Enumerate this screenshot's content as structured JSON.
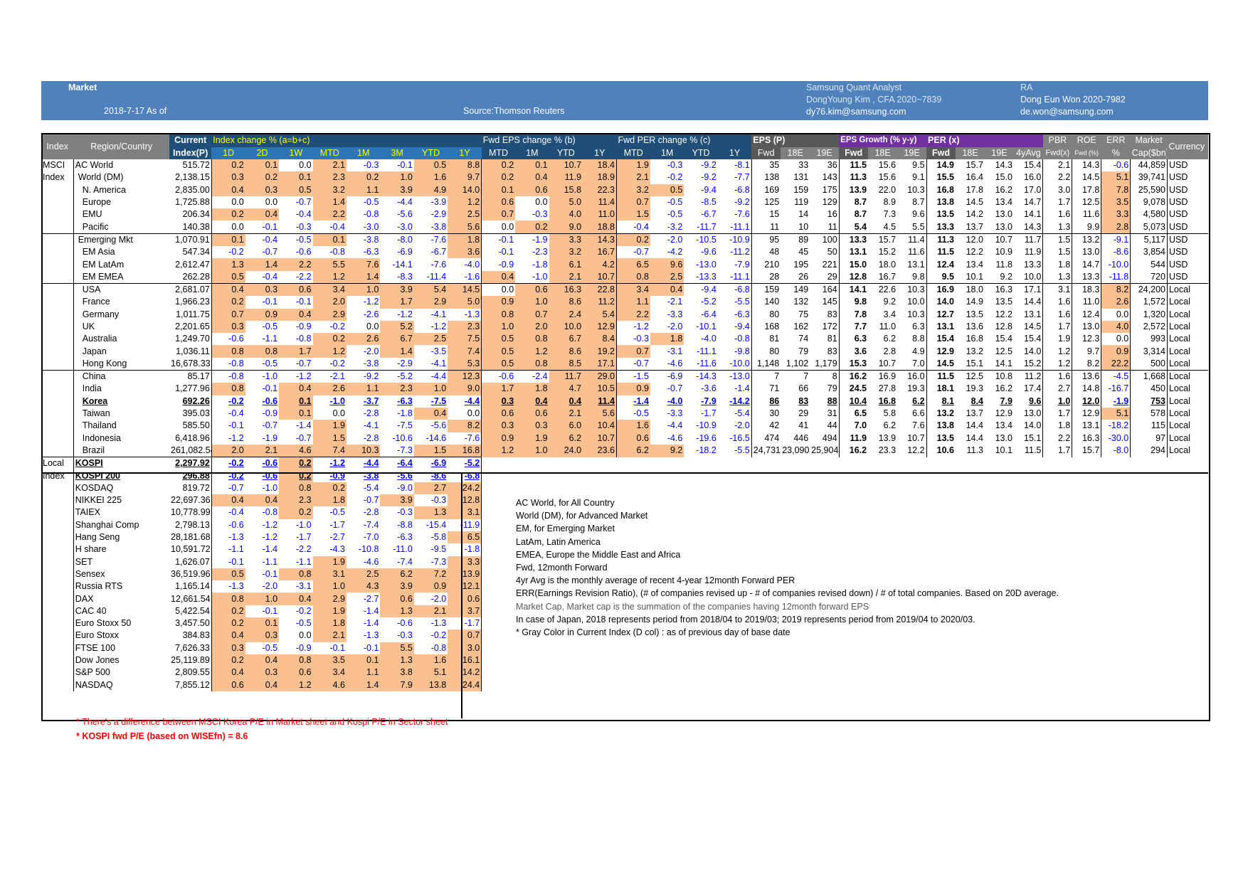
{
  "banner": {
    "title": "Market",
    "date": "2018-7-17 As of",
    "source": "Source:Thomson Reuters",
    "analyst_label": "Samsung Quant Analyst",
    "analyst_name": "DongYoung Kim , CFA 2020~7839",
    "analyst_email": "dy76.kim@samsung.com",
    "ra_label": "RA",
    "ra_name": "Dong Eun Won 2020-7982",
    "ra_email": "de.won@samsung.com"
  },
  "header": {
    "index": "Index",
    "region": "Region/Country",
    "current1": "Current",
    "current2": "Index(P)",
    "idx_change": "Index change % (a=b+c)",
    "eps_change": "Fwd EPS change % (b)",
    "per_change": "Fwd PER change % (c)",
    "eps": "EPS (P)",
    "eps_growth": "EPS Growth (% y-y)",
    "per": "PER (x)",
    "pbr1": "PBR",
    "pbr2": "Fwd(x)",
    "roe1": "ROE",
    "roe2": "Fwd (%)",
    "err1": "ERR",
    "err2": "%",
    "mcap1": "Market",
    "mcap2": "Cap($bn)",
    "currency": "Currency",
    "idx_cols": [
      "1D",
      "2D",
      "1W",
      "MTD",
      "1M",
      "3M",
      "YTD",
      "1Y"
    ],
    "eps_cols": [
      "MTD",
      "1M",
      "YTD",
      "1Y"
    ],
    "per_cols": [
      "MTD",
      "1M",
      "YTD",
      "1Y"
    ],
    "epsp_cols": [
      "Fwd",
      "18E",
      "19E"
    ],
    "epsg_cols": [
      "Fwd",
      "18E",
      "19E"
    ],
    "perx_cols": [
      "Fwd",
      "18E",
      "19E",
      "4yAvg"
    ]
  },
  "groups": {
    "msci1": "MSCI",
    "msci2": "Index",
    "local1": "Local",
    "local2": "Index"
  },
  "msci_rows": [
    [
      "AC World",
      "515.72",
      "0.2",
      "0.1",
      "0.0",
      "2.1",
      "-0.3",
      "-0.1",
      "0.5",
      "8.8",
      "0.2",
      "0.1",
      "10.7",
      "18.4",
      "1.9",
      "-0.3",
      "-9.2",
      "-8.1",
      "35",
      "33",
      "36",
      "11.5",
      "15.6",
      "9.5",
      "14.9",
      "15.7",
      "14.3",
      "15.4",
      "2.1",
      "14.3",
      "-0.6",
      "44,859",
      "USD"
    ],
    [
      "World (DM)",
      "2,138.15",
      "0.3",
      "0.2",
      "0.1",
      "2.3",
      "0.2",
      "1.0",
      "1.6",
      "9.7",
      "0.2",
      "0.4",
      "11.9",
      "18.9",
      "2.1",
      "-0.2",
      "-9.2",
      "-7.7",
      "138",
      "131",
      "143",
      "11.3",
      "15.6",
      "9.1",
      "15.5",
      "16.4",
      "15.0",
      "16.0",
      "2.2",
      "14.5",
      "5.1",
      "39,741",
      "USD"
    ],
    [
      "N. America",
      "2,835.00",
      "0.4",
      "0.3",
      "0.5",
      "3.2",
      "1.1",
      "3.9",
      "4.9",
      "14.0",
      "0.1",
      "0.6",
      "15.8",
      "22.3",
      "3.2",
      "0.5",
      "-9.4",
      "-6.8",
      "169",
      "159",
      "175",
      "13.9",
      "22.0",
      "10.3",
      "16.8",
      "17.8",
      "16.2",
      "17.0",
      "3.0",
      "17.8",
      "7.8",
      "25,590",
      "USD"
    ],
    [
      "Europe",
      "1,725.88",
      "0.0",
      "0.0",
      "-0.7",
      "1.4",
      "-0.5",
      "-4.4",
      "-3.9",
      "1.2",
      "0.6",
      "0.0",
      "5.0",
      "11.4",
      "0.7",
      "-0.5",
      "-8.5",
      "-9.2",
      "125",
      "119",
      "129",
      "8.7",
      "8.9",
      "8.7",
      "13.8",
      "14.5",
      "13.4",
      "14.7",
      "1.7",
      "12.5",
      "3.5",
      "9,078",
      "USD"
    ],
    [
      "EMU",
      "206.34",
      "0.2",
      "0.4",
      "-0.4",
      "2.2",
      "-0.8",
      "-5.6",
      "-2.9",
      "2.5",
      "0.7",
      "-0.3",
      "4.0",
      "11.0",
      "1.5",
      "-0.5",
      "-6.7",
      "-7.6",
      "15",
      "14",
      "16",
      "8.7",
      "7.3",
      "9.6",
      "13.5",
      "14.2",
      "13.0",
      "14.1",
      "1.6",
      "11.6",
      "3.3",
      "4,580",
      "USD"
    ],
    [
      "Pacific",
      "140.38",
      "0.0",
      "-0.1",
      "-0.3",
      "-0.4",
      "-3.0",
      "-3.0",
      "-3.8",
      "5.6",
      "0.0",
      "0.2",
      "9.0",
      "18.8",
      "-0.4",
      "-3.2",
      "-11.7",
      "-11.1",
      "11",
      "10",
      "11",
      "5.4",
      "4.5",
      "5.5",
      "13.3",
      "13.7",
      "13.0",
      "14.3",
      "1.3",
      "9.9",
      "2.8",
      "5,073",
      "USD"
    ],
    [
      "Emerging Mkt",
      "1,070.91",
      "0.1",
      "-0.4",
      "-0.5",
      "0.1",
      "-3.8",
      "-8.0",
      "-7.6",
      "1.8",
      "-0.1",
      "-1.9",
      "3.3",
      "14.3",
      "0.2",
      "-2.0",
      "-10.5",
      "-10.9",
      "95",
      "89",
      "100",
      "13.3",
      "15.7",
      "11.4",
      "11.3",
      "12.0",
      "10.7",
      "11.7",
      "1.5",
      "13.2",
      "-9.1",
      "5,117",
      "USD"
    ],
    [
      "EM Asia",
      "547.34",
      "-0.2",
      "-0.7",
      "-0.6",
      "-0.8",
      "-6.3",
      "-6.9",
      "-6.7",
      "3.6",
      "-0.1",
      "-2.3",
      "3.2",
      "16.7",
      "-0.7",
      "-4.2",
      "-9.6",
      "-11.2",
      "48",
      "45",
      "50",
      "13.1",
      "15.2",
      "11.6",
      "11.5",
      "12.2",
      "10.9",
      "11.9",
      "1.5",
      "13.0",
      "-8.6",
      "3,854",
      "USD"
    ],
    [
      "EM LatAm",
      "2,612.47",
      "1.3",
      "1.4",
      "2.2",
      "5.5",
      "7.6",
      "-14.1",
      "-7.6",
      "-4.0",
      "-0.9",
      "-1.8",
      "6.1",
      "4.2",
      "6.5",
      "9.6",
      "-13.0",
      "-7.9",
      "210",
      "195",
      "221",
      "15.0",
      "18.0",
      "13.1",
      "12.4",
      "13.4",
      "11.8",
      "13.3",
      "1.8",
      "14.7",
      "-10.0",
      "544",
      "USD"
    ],
    [
      "EM EMEA",
      "262.28",
      "0.5",
      "-0.4",
      "-2.2",
      "1.2",
      "1.4",
      "-8.3",
      "-11.4",
      "-1.6",
      "0.4",
      "-1.0",
      "2.1",
      "10.7",
      "0.8",
      "2.5",
      "-13.3",
      "-11.1",
      "28",
      "26",
      "29",
      "12.8",
      "16.7",
      "9.8",
      "9.5",
      "10.1",
      "9.2",
      "10.0",
      "1.3",
      "13.3",
      "-11.8",
      "720",
      "USD"
    ],
    [
      "USA",
      "2,681.07",
      "0.4",
      "0.3",
      "0.6",
      "3.4",
      "1.0",
      "3.9",
      "5.4",
      "14.5",
      "0.0",
      "0.6",
      "16.3",
      "22.8",
      "3.4",
      "0.4",
      "-9.4",
      "-6.8",
      "159",
      "149",
      "164",
      "14.1",
      "22.6",
      "10.3",
      "16.9",
      "18.0",
      "16.3",
      "17.1",
      "3.1",
      "18.3",
      "8.2",
      "24,200",
      "Local"
    ],
    [
      "France",
      "1,966.23",
      "0.2",
      "-0.1",
      "-0.1",
      "2.0",
      "-1.2",
      "1.7",
      "2.9",
      "5.0",
      "0.9",
      "1.0",
      "8.6",
      "11.2",
      "1.1",
      "-2.1",
      "-5.2",
      "-5.5",
      "140",
      "132",
      "145",
      "9.8",
      "9.2",
      "10.0",
      "14.0",
      "14.9",
      "13.5",
      "14.4",
      "1.6",
      "11.0",
      "2.6",
      "1,572",
      "Local"
    ],
    [
      "Germany",
      "1,011.75",
      "0.7",
      "0.9",
      "0.4",
      "2.9",
      "-2.6",
      "-1.2",
      "-4.1",
      "-1.3",
      "0.8",
      "0.7",
      "2.4",
      "5.4",
      "2.2",
      "-3.3",
      "-6.4",
      "-6.3",
      "80",
      "75",
      "83",
      "7.8",
      "3.4",
      "10.3",
      "12.7",
      "13.5",
      "12.2",
      "13.1",
      "1.6",
      "12.4",
      "0.0",
      "1,320",
      "Local"
    ],
    [
      "UK",
      "2,201.65",
      "0.3",
      "-0.5",
      "-0.9",
      "-0.2",
      "0.0",
      "5.2",
      "-1.2",
      "2.3",
      "1.0",
      "2.0",
      "10.0",
      "12.9",
      "-1.2",
      "-2.0",
      "-10.1",
      "-9.4",
      "168",
      "162",
      "172",
      "7.7",
      "11.0",
      "6.3",
      "13.1",
      "13.6",
      "12.8",
      "14.5",
      "1.7",
      "13.0",
      "4.0",
      "2,572",
      "Local"
    ],
    [
      "Australia",
      "1,249.70",
      "-0.6",
      "-1.1",
      "-0.8",
      "0.2",
      "2.6",
      "6.7",
      "2.5",
      "7.5",
      "0.5",
      "0.8",
      "6.7",
      "8.4",
      "-0.3",
      "1.8",
      "-4.0",
      "-0.8",
      "81",
      "74",
      "81",
      "6.3",
      "6.2",
      "8.8",
      "15.4",
      "16.8",
      "15.4",
      "15.4",
      "1.9",
      "12.3",
      "0.0",
      "993",
      "Local"
    ],
    [
      "Japan",
      "1,036.11",
      "0.8",
      "0.8",
      "1.7",
      "1.2",
      "-2.0",
      "1.4",
      "-3.5",
      "7.4",
      "0.5",
      "1.2",
      "8.6",
      "19.2",
      "0.7",
      "-3.1",
      "-11.1",
      "-9.8",
      "80",
      "79",
      "83",
      "3.6",
      "2.8",
      "4.9",
      "12.9",
      "13.2",
      "12.5",
      "14.0",
      "1.2",
      "9.7",
      "0.9",
      "3,314",
      "Local"
    ],
    [
      "Hong Kong",
      "16,678.33",
      "-0.8",
      "-0.5",
      "-0.7",
      "-0.2",
      "-3.8",
      "-2.9",
      "-4.1",
      "5.3",
      "0.5",
      "0.8",
      "8.5",
      "17.1",
      "-0.7",
      "-4.6",
      "-11.6",
      "-10.0",
      "1,148",
      "1,102",
      "1,179",
      "15.3",
      "10.7",
      "7.0",
      "14.5",
      "15.1",
      "14.1",
      "15.2",
      "1.2",
      "8.2",
      "22.2",
      "500",
      "Local"
    ],
    [
      "China",
      "85.17",
      "-0.8",
      "-1.0",
      "-1.2",
      "-2.1",
      "-9.2",
      "-5.2",
      "-4.4",
      "12.3",
      "-0.6",
      "-2.4",
      "11.7",
      "29.0",
      "-1.5",
      "-6.9",
      "-14.3",
      "-13.0",
      "7",
      "7",
      "8",
      "16.2",
      "16.9",
      "16.0",
      "11.5",
      "12.5",
      "10.8",
      "11.2",
      "1.6",
      "13.6",
      "-4.5",
      "1,668",
      "Local"
    ],
    [
      "India",
      "1,277.96",
      "0.8",
      "-0.1",
      "0.4",
      "2.6",
      "1.1",
      "2.3",
      "1.0",
      "9.0",
      "1.7",
      "1.8",
      "4.7",
      "10.5",
      "0.9",
      "-0.7",
      "-3.6",
      "-1.4",
      "71",
      "66",
      "79",
      "24.5",
      "27.8",
      "19.3",
      "18.1",
      "19.3",
      "16.2",
      "17.4",
      "2.7",
      "14.8",
      "-16.7",
      "450",
      "Local"
    ],
    [
      "Korea",
      "692.26",
      "-0.2",
      "-0.6",
      "0.1",
      "-1.0",
      "-3.7",
      "-6.3",
      "-7.5",
      "-4.4",
      "0.3",
      "0.4",
      "0.4",
      "11.4",
      "-1.4",
      "-4.0",
      "-7.9",
      "-14.2",
      "86",
      "83",
      "88",
      "10.4",
      "16.8",
      "6.2",
      "8.1",
      "8.4",
      "7.9",
      "9.6",
      "1.0",
      "12.0",
      "-1.9",
      "753",
      "Local"
    ],
    [
      "Taiwan",
      "395.03",
      "-0.4",
      "-0.9",
      "0.1",
      "0.0",
      "-2.8",
      "-1.8",
      "0.4",
      "0.0",
      "0.6",
      "0.6",
      "2.1",
      "5.6",
      "-0.5",
      "-3.3",
      "-1.7",
      "-5.4",
      "30",
      "29",
      "31",
      "6.5",
      "5.8",
      "6.6",
      "13.2",
      "13.7",
      "12.9",
      "13.0",
      "1.7",
      "12.9",
      "5.1",
      "578",
      "Local"
    ],
    [
      "Thailand",
      "585.50",
      "-0.1",
      "-0.7",
      "-1.4",
      "1.9",
      "-4.1",
      "-7.5",
      "-5.6",
      "8.2",
      "0.3",
      "0.3",
      "6.0",
      "10.4",
      "1.6",
      "-4.4",
      "-10.9",
      "-2.0",
      "42",
      "41",
      "44",
      "7.0",
      "6.2",
      "7.6",
      "13.8",
      "14.4",
      "13.4",
      "14.0",
      "1.8",
      "13.1",
      "-18.2",
      "115",
      "Local"
    ],
    [
      "Indonesia",
      "6,418.96",
      "-1.2",
      "-1.9",
      "-0.7",
      "1.5",
      "-2.8",
      "-10.6",
      "-14.6",
      "-7.6",
      "0.9",
      "1.9",
      "6.2",
      "10.7",
      "0.6",
      "-4.6",
      "-19.6",
      "-16.5",
      "474",
      "446",
      "494",
      "11.9",
      "13.9",
      "10.7",
      "13.5",
      "14.4",
      "13.0",
      "15.1",
      "2.2",
      "16.3",
      "-30.0",
      "97",
      "Local"
    ],
    [
      "Brazil",
      "261,082.54",
      "2.0",
      "2.1",
      "4.6",
      "7.4",
      "10.3",
      "-7.3",
      "1.5",
      "16.8",
      "1.2",
      "1.0",
      "24.0",
      "23.6",
      "6.2",
      "9.2",
      "-18.2",
      "-5.5",
      "24,731",
      "23,090",
      "25,904",
      "16.2",
      "23.3",
      "12.2",
      "10.6",
      "11.3",
      "10.1",
      "11.5",
      "1.7",
      "15.7",
      "-8.0",
      "294",
      "Local"
    ]
  ],
  "local_rows": [
    [
      "KOSPI",
      "2,297.92",
      "-0.2",
      "-0.6",
      "0.2",
      "-1.2",
      "-4.4",
      "-6.4",
      "-6.9",
      "-5.2"
    ],
    [
      "KOSPI 200",
      "296.88",
      "-0.2",
      "-0.6",
      "0.2",
      "-0.9",
      "-3.8",
      "-5.6",
      "-8.6",
      "-6.8"
    ],
    [
      "KOSDAQ",
      "819.72",
      "-0.7",
      "-1.0",
      "0.8",
      "0.2",
      "-5.4",
      "-9.0",
      "2.7",
      "24.2"
    ],
    [
      "NIKKEI 225",
      "22,697.36",
      "0.4",
      "0.4",
      "2.3",
      "1.8",
      "-0.7",
      "3.9",
      "-0.3",
      "12.8"
    ],
    [
      "TAIEX",
      "10,778.99",
      "-0.4",
      "-0.8",
      "0.2",
      "-0.5",
      "-2.8",
      "-0.3",
      "1.3",
      "3.1"
    ],
    [
      "Shanghai Comp",
      "2,798.13",
      "-0.6",
      "-1.2",
      "-1.0",
      "-1.7",
      "-7.4",
      "-8.8",
      "-15.4",
      "-11.9"
    ],
    [
      "Hang Seng",
      "28,181.68",
      "-1.3",
      "-1.2",
      "-1.7",
      "-2.7",
      "-7.0",
      "-6.3",
      "-5.8",
      "6.5"
    ],
    [
      "H share",
      "10,591.72",
      "-1.1",
      "-1.4",
      "-2.2",
      "-4.3",
      "-10.8",
      "-11.0",
      "-9.5",
      "-1.8"
    ],
    [
      "SET",
      "1,626.07",
      "-0.1",
      "-1.1",
      "-1.1",
      "1.9",
      "-4.6",
      "-7.4",
      "-7.3",
      "3.3"
    ],
    [
      "Sensex",
      "36,519.96",
      "0.5",
      "-0.1",
      "0.8",
      "3.1",
      "2.5",
      "6.2",
      "7.2",
      "13.9"
    ],
    [
      "Russia RTS",
      "1,165.14",
      "-1.3",
      "-2.0",
      "-3.1",
      "1.0",
      "4.3",
      "3.9",
      "0.9",
      "12.1"
    ],
    [
      "DAX",
      "12,661.54",
      "0.8",
      "1.0",
      "0.4",
      "2.9",
      "-2.7",
      "0.6",
      "-2.0",
      "0.6"
    ],
    [
      "CAC 40",
      "5,422.54",
      "0.2",
      "-0.1",
      "-0.2",
      "1.9",
      "-1.4",
      "1.3",
      "2.1",
      "3.7"
    ],
    [
      "Euro Stoxx 50",
      "3,457.50",
      "0.2",
      "0.1",
      "-0.5",
      "1.8",
      "-1.4",
      "-0.6",
      "-1.3",
      "-1.7"
    ],
    [
      "Euro Stoxx",
      "384.83",
      "0.4",
      "0.3",
      "0.0",
      "2.1",
      "-1.3",
      "-0.3",
      "-0.2",
      "0.7"
    ],
    [
      "FTSE 100",
      "7,626.33",
      "0.3",
      "-0.5",
      "-0.9",
      "-0.1",
      "-0.1",
      "5.5",
      "-0.8",
      "3.0"
    ],
    [
      "Dow Jones",
      "25,119.89",
      "0.2",
      "0.4",
      "0.8",
      "3.5",
      "0.1",
      "1.3",
      "1.6",
      "16.1"
    ],
    [
      "S&P 500",
      "2,809.55",
      "0.4",
      "0.3",
      "0.6",
      "3.4",
      "1.1",
      "3.8",
      "5.1",
      "14.2"
    ],
    [
      "NASDAQ",
      "7,855.12",
      "0.6",
      "0.4",
      "1.2",
      "4.6",
      "1.4",
      "7.9",
      "13.8",
      "24.4"
    ]
  ],
  "notes": [
    "AC World, for All Country",
    "World (DM), for Advanced Market",
    "EM, for Emerging Market",
    "LatAm, Latin America",
    "EMEA, Europe the Middle East and Africa",
    "Fwd, 12month Forward",
    "4yr Avg is the monthly average of recent 4-year 12month Forward PER",
    "ERR(Earnings Revision Ratio), (# of companies revised up - # of companies revised down) / # of total companies. Based on 20D average.",
    "Market Cap, Market cap is the summation of the companies having 12month forward EPS",
    "In case of Japan, 2018 represents period from 2018/04 to 2019/03; 2019 represents period from 2019/04 to 2020/03.",
    "* Gray Color in Current Index (D col) : as of previous day of base date"
  ],
  "footnotes": [
    "* There's a difference between MSCI Korea P/E in Market sheet and Kospi P/E in Sector sheet",
    "* KOSPI fwd P/E (based on WISEfn) = 8.6"
  ],
  "colors": {
    "banner": "#4f81bd",
    "positive_fill": "#fac090",
    "negative_text": "#0000ff",
    "header_dark": "#1f4e79",
    "header_grey": "#808080"
  }
}
